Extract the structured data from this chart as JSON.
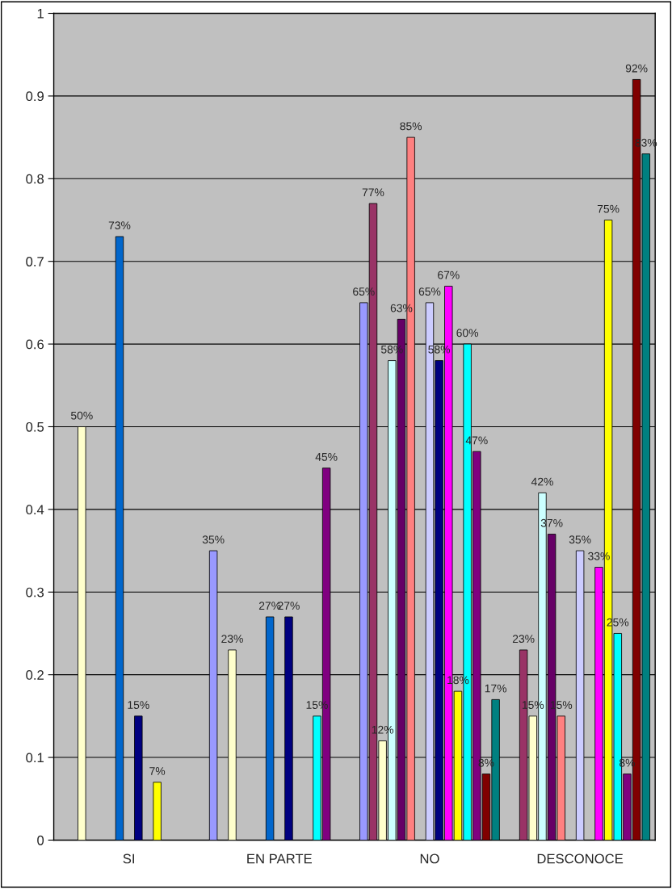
{
  "chart_data": {
    "type": "bar",
    "categories": [
      "SI",
      "EN PARTE",
      "NO",
      "DESCONOCE"
    ],
    "series": [
      {
        "color": "#9999ff",
        "values": [
          null,
          0.35,
          0.65,
          null
        ],
        "value_labels": [
          null,
          "35%",
          "65%",
          null
        ]
      },
      {
        "color": "#993366",
        "values": [
          null,
          null,
          0.77,
          0.23
        ],
        "value_labels": [
          null,
          null,
          "77%",
          "23%"
        ]
      },
      {
        "color": "#ffffcc",
        "values": [
          0.5,
          0.23,
          0.12,
          0.15
        ],
        "value_labels": [
          "50%",
          "23%",
          "12%",
          "15%"
        ]
      },
      {
        "color": "#ccffff",
        "values": [
          null,
          null,
          0.58,
          0.42
        ],
        "value_labels": [
          null,
          null,
          "58%",
          "42%"
        ]
      },
      {
        "color": "#660066",
        "values": [
          null,
          null,
          0.63,
          0.37
        ],
        "value_labels": [
          null,
          null,
          "63%",
          "37%"
        ]
      },
      {
        "color": "#ff8080",
        "values": [
          null,
          null,
          0.85,
          0.15
        ],
        "value_labels": [
          null,
          null,
          "85%",
          "15%"
        ]
      },
      {
        "color": "#0066cc",
        "values": [
          0.73,
          0.27,
          null,
          null
        ],
        "value_labels": [
          "73%",
          "27%",
          null,
          null
        ]
      },
      {
        "color": "#ccccff",
        "values": [
          null,
          null,
          0.65,
          0.35
        ],
        "value_labels": [
          null,
          null,
          "65%",
          "35%"
        ]
      },
      {
        "color": "#000080",
        "values": [
          0.15,
          0.27,
          0.58,
          null
        ],
        "value_labels": [
          "15%",
          "27%",
          "58%",
          null
        ]
      },
      {
        "color": "#ff00ff",
        "values": [
          null,
          null,
          0.67,
          0.33
        ],
        "value_labels": [
          null,
          null,
          "67%",
          "33%"
        ]
      },
      {
        "color": "#ffff00",
        "values": [
          0.07,
          null,
          0.18,
          0.75
        ],
        "value_labels": [
          "7%",
          null,
          "18%",
          "75%"
        ]
      },
      {
        "color": "#00ffff",
        "values": [
          null,
          0.15,
          0.6,
          0.25
        ],
        "value_labels": [
          null,
          "15%",
          "60%",
          "25%"
        ]
      },
      {
        "color": "#800080",
        "values": [
          null,
          0.45,
          0.47,
          0.08
        ],
        "value_labels": [
          null,
          "45%",
          "47%",
          "8%"
        ]
      },
      {
        "color": "#800000",
        "values": [
          null,
          null,
          0.08,
          0.92
        ],
        "value_labels": [
          null,
          null,
          "8%",
          "92%"
        ]
      },
      {
        "color": "#008080",
        "values": [
          null,
          null,
          0.17,
          0.83
        ],
        "value_labels": [
          null,
          null,
          "17%",
          "83%"
        ]
      }
    ],
    "ylim": [
      0,
      1
    ],
    "yticks": [
      0,
      0.1,
      0.2,
      0.3,
      0.4,
      0.5,
      0.6,
      0.7,
      0.8,
      0.9,
      1
    ],
    "grid": "y",
    "legend": false
  }
}
